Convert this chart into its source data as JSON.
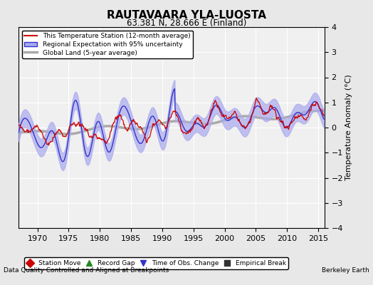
{
  "title": "RAUTAVAARA YLA-LUOSTA",
  "subtitle": "63.381 N, 28.666 E (Finland)",
  "xlabel_left": "Data Quality Controlled and Aligned at Breakpoints",
  "xlabel_right": "Berkeley Earth",
  "ylabel": "Temperature Anomaly (°C)",
  "xlim": [
    1967,
    2016
  ],
  "ylim": [
    -4,
    4
  ],
  "yticks": [
    -4,
    -3,
    -2,
    -1,
    0,
    1,
    2,
    3,
    4
  ],
  "xticks": [
    1970,
    1975,
    1980,
    1985,
    1990,
    1995,
    2000,
    2005,
    2010,
    2015
  ],
  "bg_color": "#e8e8e8",
  "plot_bg_color": "#f0f0f0",
  "grid_color": "#ffffff",
  "station_color": "#cc0000",
  "regional_color": "#3333cc",
  "regional_fill_color": "#aaaaee",
  "global_color": "#aaaaaa",
  "legend_items": [
    {
      "label": "This Temperature Station (12-month average)",
      "color": "#cc0000",
      "lw": 1.5
    },
    {
      "label": "Regional Expectation with 95% uncertainty",
      "color": "#3333cc",
      "lw": 1.5
    },
    {
      "label": "Global Land (5-year average)",
      "color": "#aaaaaa",
      "lw": 2.5
    }
  ],
  "marker_legend": [
    {
      "marker": "D",
      "color": "#cc0000",
      "label": "Station Move"
    },
    {
      "marker": "^",
      "color": "#228822",
      "label": "Record Gap"
    },
    {
      "marker": "v",
      "color": "#3333cc",
      "label": "Time of Obs. Change"
    },
    {
      "marker": "s",
      "color": "#333333",
      "label": "Empirical Break"
    }
  ]
}
